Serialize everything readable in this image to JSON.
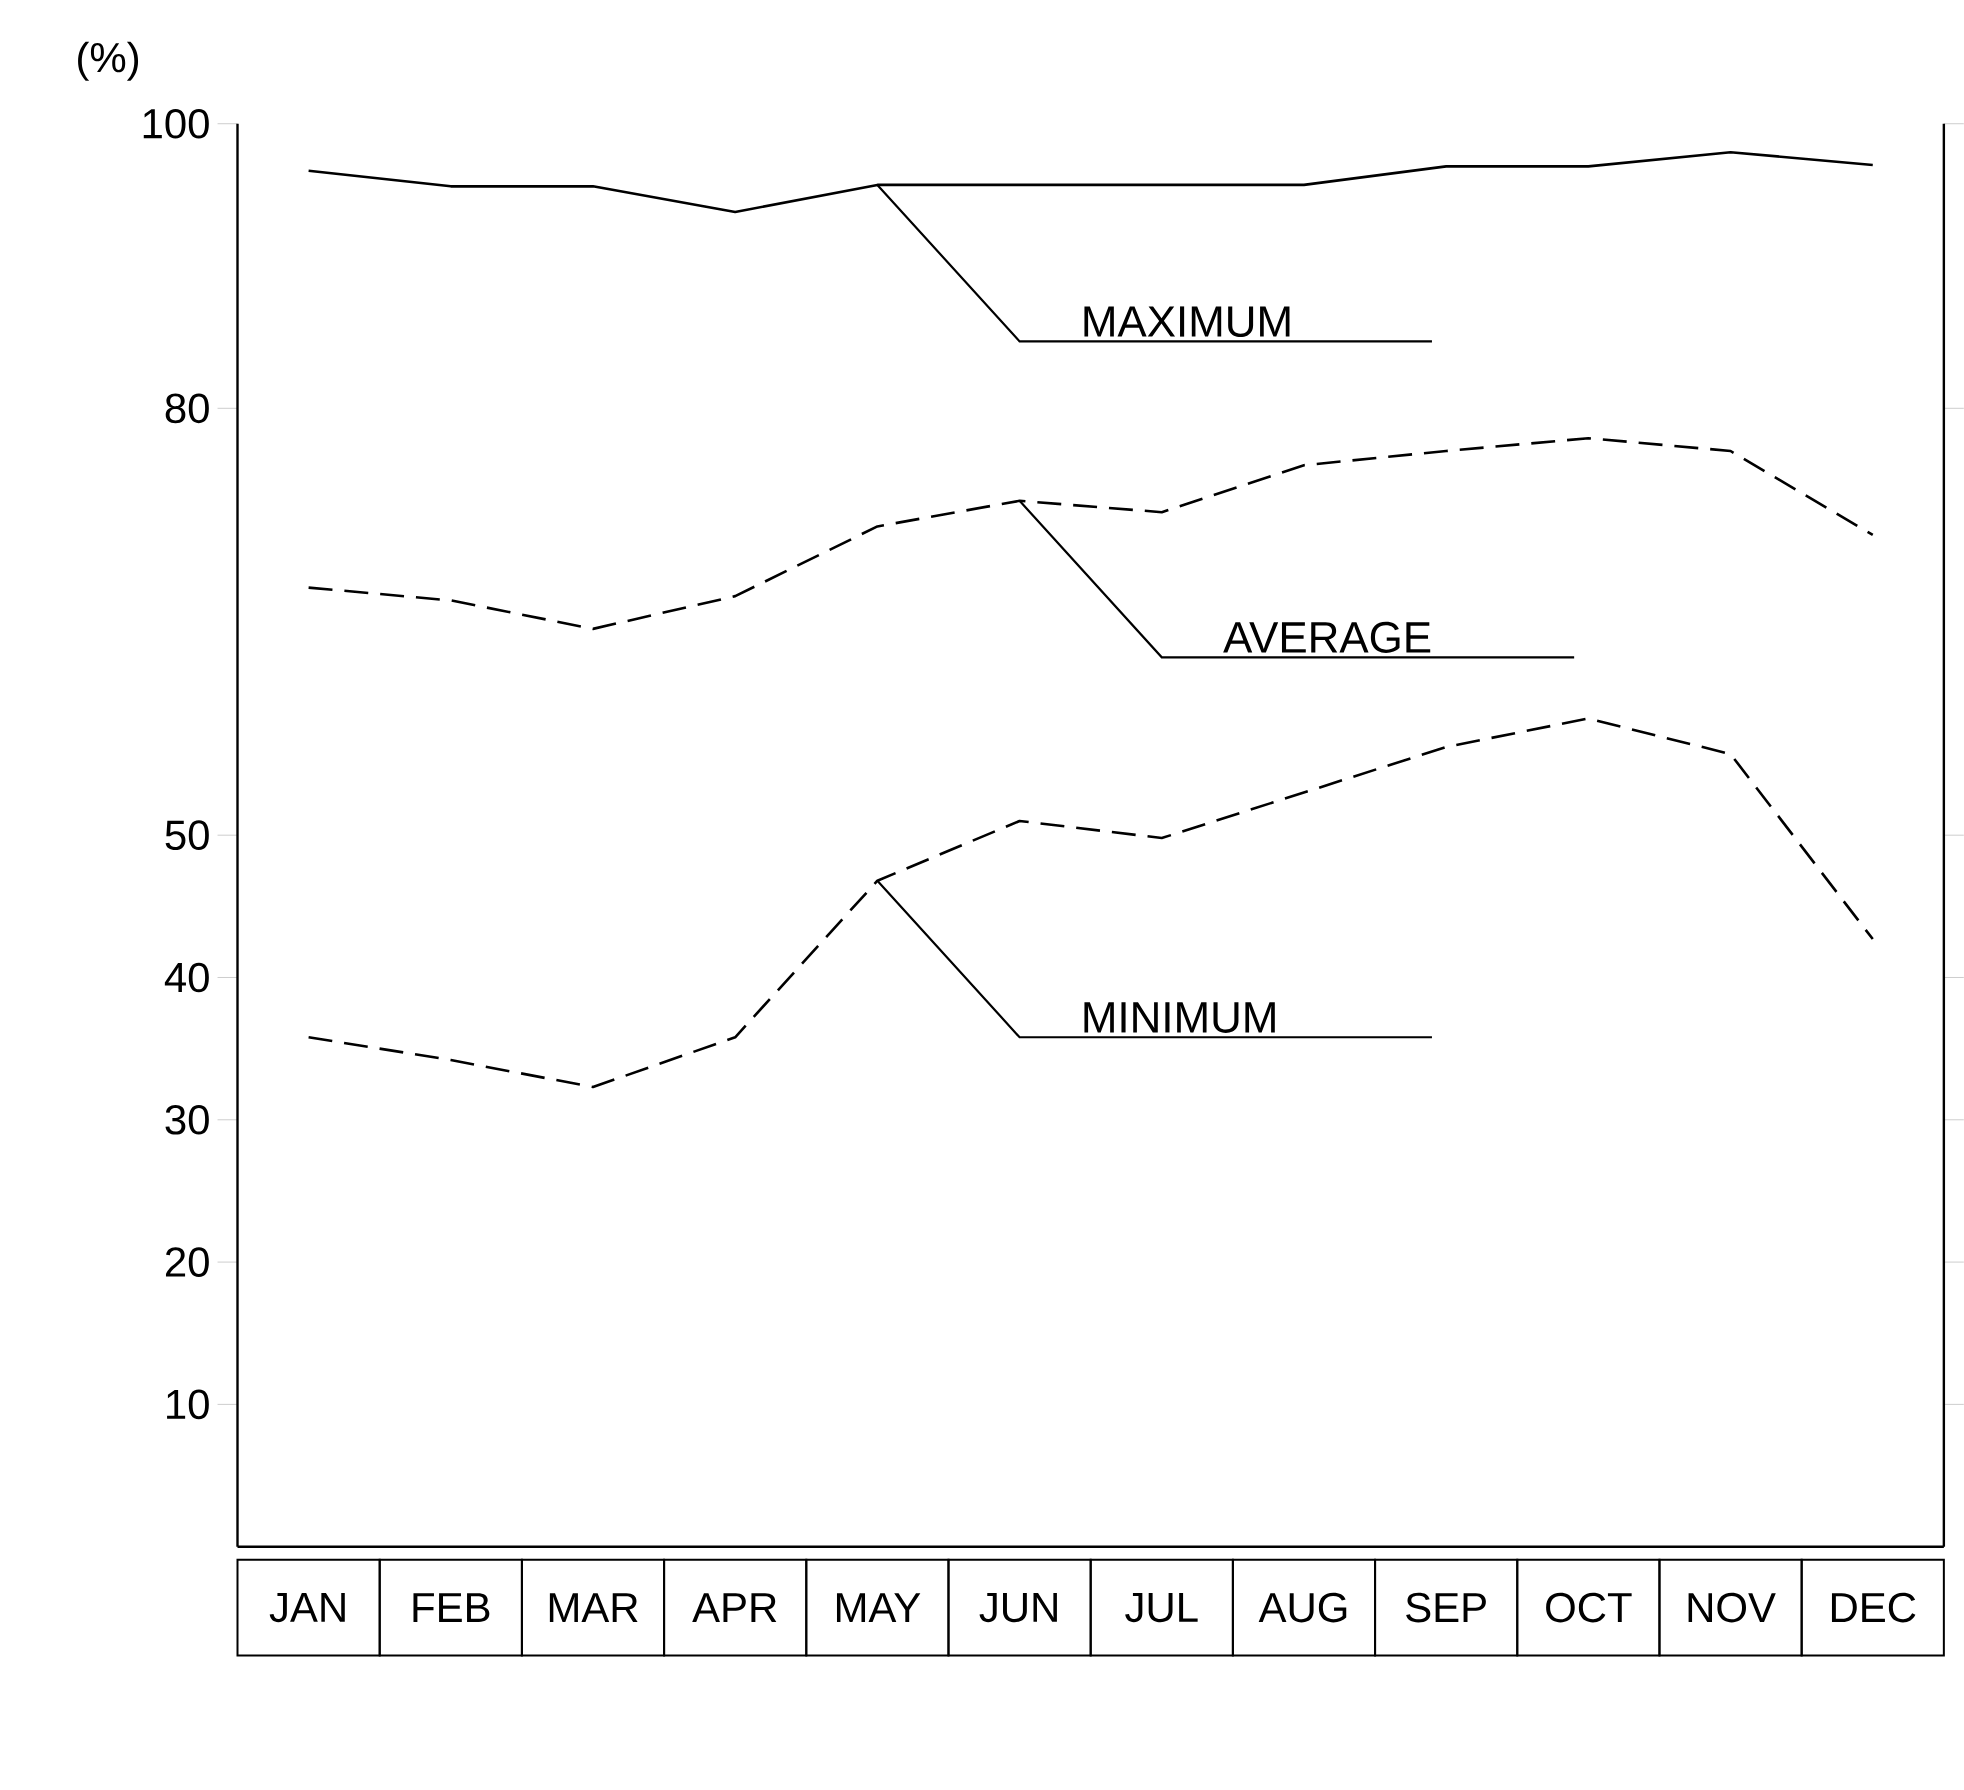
{
  "chart_data": {
    "type": "line",
    "ylabel": "(%)",
    "categories": [
      "JAN",
      "FEB",
      "MAR",
      "APR",
      "MAY",
      "JUN",
      "JUL",
      "AUG",
      "SEP",
      "OCT",
      "NOV",
      "DEC"
    ],
    "series": [
      {
        "color": "#000000",
        "line_style": "solid",
        "values": [
          96.7,
          95.6,
          95.6,
          93.8,
          95.7,
          95.7,
          95.7,
          95.7,
          97,
          97,
          98,
          97.1
        ]
      },
      {
        "color": "#000000",
        "line_style": "dashed",
        "values": [
          67.4,
          66.5,
          64.5,
          66.8,
          71.7,
          73.5,
          72.7,
          76,
          77,
          77.9,
          77,
          71.1
        ]
      },
      {
        "color": "#000000",
        "line_style": "dashed",
        "values": [
          35.8,
          34.2,
          32.3,
          35.8,
          46.8,
          51,
          49.8,
          53,
          56.2,
          58.2,
          55.7,
          42.7
        ]
      }
    ],
    "annotations": [
      {
        "text": "MAXIMUM",
        "x": "MAY",
        "y": 95.7
      },
      {
        "text": "AVERAGE",
        "x": "JUN",
        "y": 73.5
      },
      {
        "text": "MINIMUM",
        "x": "MAY",
        "y": 46.8
      }
    ],
    "ylim": [
      0,
      100
    ],
    "yticks": [
      10,
      20,
      30,
      40,
      50,
      80,
      100
    ],
    "grid": false,
    "marker": "none"
  }
}
